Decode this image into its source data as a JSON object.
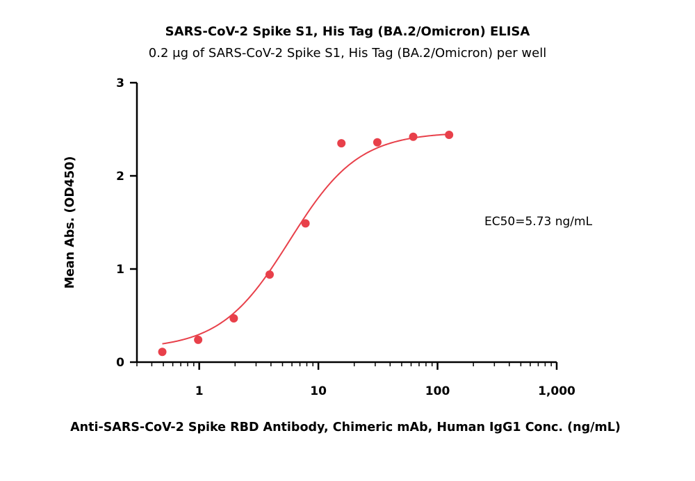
{
  "chart_data": {
    "type": "scatter",
    "title": "SARS-CoV-2 Spike S1, His Tag (BA.2/Omicron) ELISA",
    "subtitle": "0.2 μg of SARS-CoV-2 Spike S1, His Tag (BA.2/Omicron) per well",
    "xlabel": "Anti-SARS-CoV-2 Spike RBD Antibody, Chimeric mAb, Human IgG1 Conc. (ng/mL)",
    "ylabel": "Mean Abs. (OD450)",
    "x_scale": "log",
    "xlim": [
      0.3,
      1000
    ],
    "ylim": [
      0,
      3
    ],
    "x_ticks": [
      1,
      10,
      100,
      1000
    ],
    "x_tick_labels": [
      "1",
      "10",
      "100",
      "1,000"
    ],
    "y_ticks": [
      0,
      1,
      2,
      3
    ],
    "y_tick_labels": [
      "0",
      "1",
      "2",
      "3"
    ],
    "grid": false,
    "series": [
      {
        "x": [
          0.49,
          0.98,
          1.95,
          3.9,
          7.8,
          15.6,
          31.25,
          62.5,
          125
        ],
        "y": [
          0.11,
          0.24,
          0.47,
          0.94,
          1.49,
          2.35,
          2.36,
          2.42,
          2.44
        ],
        "color": "#e8404a",
        "marker": "circle"
      }
    ],
    "fit": {
      "model": "4PL",
      "bottom": 0.14,
      "top": 2.47,
      "ec50": 5.73,
      "hill": 1.5,
      "color": "#e8404a"
    },
    "annotation": "EC50=5.73 ng/mL"
  }
}
